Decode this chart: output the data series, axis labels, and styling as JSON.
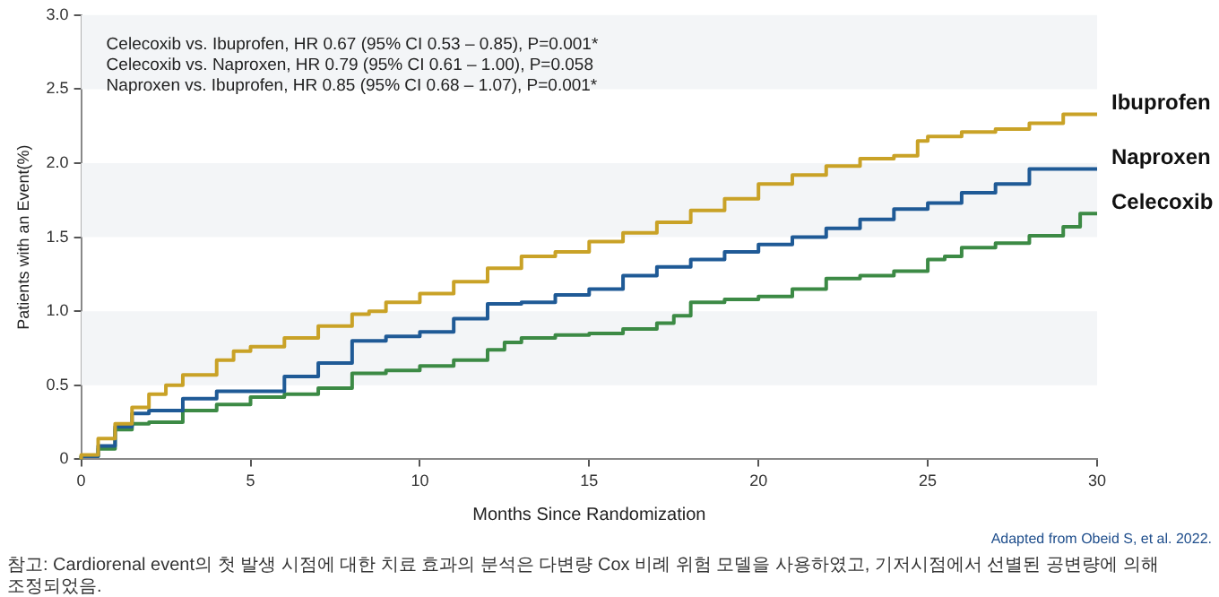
{
  "chart_data": {
    "type": "step",
    "xlabel": "Months Since Randomization",
    "ylabel": "Patients with an Event(%)",
    "xlim": [
      0,
      30
    ],
    "xticks": [
      0,
      5,
      10,
      15,
      20,
      25,
      30
    ],
    "ylim": [
      0,
      3
    ],
    "yticks": [
      0,
      0.5,
      {
        "value": 1,
        "label": "1.0"
      },
      1.5,
      {
        "value": 2,
        "label": "2.0"
      },
      2.5,
      {
        "value": 3,
        "label": "3.0"
      }
    ],
    "grid": false,
    "legend": false,
    "marker": "none",
    "line_style": "solid",
    "bands": [
      {
        "axis": "y",
        "from": 0.5,
        "to": 1,
        "color": "#f3f5f7"
      },
      {
        "axis": "y",
        "from": 1.5,
        "to": 2,
        "color": "#f3f5f7"
      },
      {
        "axis": "y",
        "from": 2.5,
        "to": 3,
        "color": "#f3f5f7"
      }
    ],
    "annotations": [
      "Celecoxib vs. Ibuprofen, HR 0.67 (95% CI 0.53 – 0.85), P=0.001*",
      "Celecoxib vs. Naproxen, HR 0.79 (95% CI 0.61 – 1.00), P=0.058",
      "Naproxen vs. Ibuprofen, HR 0.85 (95% CI 0.68 – 1.07), P=0.001*",
      "참고: Cardiorenal event의 첫 발생 시점에 대한 치료 효과의 분석은 다변량 Cox 비례 위험 모델을 사용하였고, 기저시점에서 선별된 공변량에 의해 조정되었음.",
      "Adapted from Obeid S, et al. 2022."
    ],
    "series": [
      {
        "name": "Ibuprofen",
        "color": "#c9a227",
        "x": [
          0,
          0.5,
          1,
          1.5,
          2,
          2.5,
          3,
          4,
          4.5,
          5,
          6,
          7,
          8,
          8.5,
          9,
          10,
          11,
          12,
          13,
          14,
          15,
          16,
          17,
          18,
          19,
          20,
          21,
          22,
          23,
          24,
          24.7,
          25,
          26,
          27,
          28,
          29,
          30
        ],
        "values": [
          0,
          0.03,
          0.14,
          0.24,
          0.35,
          0.44,
          0.5,
          0.57,
          0.67,
          0.73,
          0.76,
          0.82,
          0.9,
          0.98,
          1.0,
          1.06,
          1.12,
          1.2,
          1.29,
          1.37,
          1.4,
          1.47,
          1.53,
          1.6,
          1.68,
          1.76,
          1.86,
          1.92,
          1.98,
          2.03,
          2.05,
          2.15,
          2.18,
          2.21,
          2.23,
          2.27,
          2.33
        ]
      },
      {
        "name": "Naproxen",
        "color": "#1f5a96",
        "x": [
          0,
          0.5,
          1,
          1.5,
          2,
          3,
          4,
          5,
          6,
          7,
          8,
          9,
          10,
          11,
          12,
          13,
          14,
          15,
          16,
          17,
          18,
          19,
          20,
          21,
          22,
          23,
          24,
          25,
          26,
          27,
          28,
          29,
          30
        ],
        "values": [
          0,
          0.02,
          0.09,
          0.22,
          0.31,
          0.33,
          0.41,
          0.46,
          0.46,
          0.56,
          0.65,
          0.8,
          0.83,
          0.86,
          0.95,
          1.05,
          1.06,
          1.11,
          1.15,
          1.24,
          1.3,
          1.35,
          1.4,
          1.45,
          1.5,
          1.56,
          1.62,
          1.69,
          1.73,
          1.8,
          1.86,
          1.96,
          1.96
        ]
      },
      {
        "name": "Celecoxib",
        "color": "#3c8a45",
        "x": [
          0,
          0.5,
          1,
          1.5,
          2,
          3,
          4,
          5,
          6,
          7,
          8,
          9,
          10,
          11,
          12,
          12.5,
          13,
          14,
          15,
          16,
          17,
          17.5,
          18,
          19,
          20,
          21,
          22,
          23,
          24,
          25,
          25.5,
          26,
          27,
          28,
          29,
          29.5,
          30
        ],
        "values": [
          0,
          0.02,
          0.07,
          0.2,
          0.24,
          0.25,
          0.33,
          0.37,
          0.42,
          0.44,
          0.48,
          0.58,
          0.6,
          0.63,
          0.67,
          0.74,
          0.79,
          0.82,
          0.84,
          0.85,
          0.88,
          0.92,
          0.97,
          1.06,
          1.08,
          1.1,
          1.15,
          1.22,
          1.24,
          1.27,
          1.35,
          1.37,
          1.43,
          1.46,
          1.51,
          1.57,
          1.66
        ]
      }
    ]
  }
}
